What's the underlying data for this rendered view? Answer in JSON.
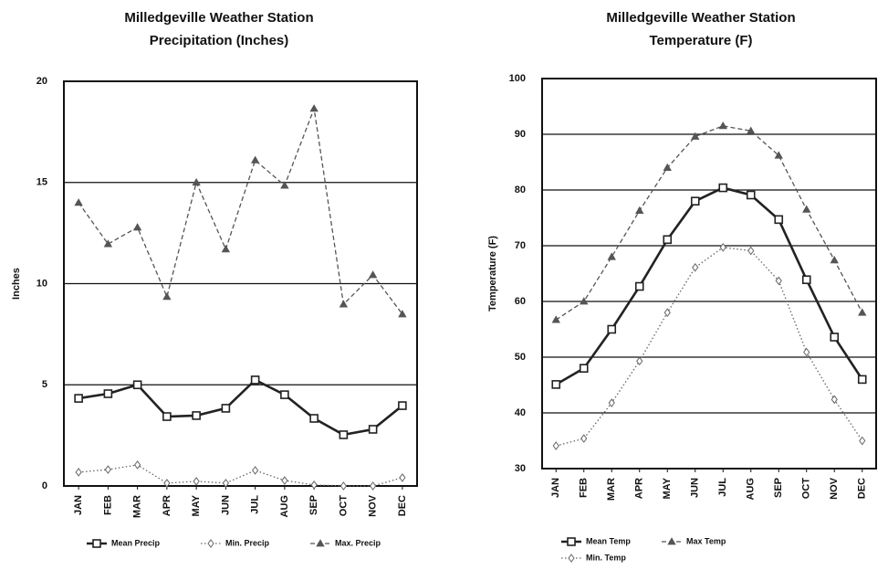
{
  "chart_data": [
    {
      "type": "line",
      "title": "Milledgeville Weather Station",
      "subtitle": "Precipitation (Inches)",
      "y_label": "Inches",
      "categories": [
        "JAN",
        "FEB",
        "MAR",
        "APR",
        "MAY",
        "JUN",
        "JUL",
        "AUG",
        "SEP",
        "OCT",
        "NOV",
        "DEC"
      ],
      "ylim": [
        0,
        20
      ],
      "yticks": [
        0,
        5,
        10,
        15,
        20
      ],
      "grid": true,
      "legend": "bottom",
      "series": [
        {
          "name": "Mean Precip",
          "color": "#222222",
          "marker": "square",
          "style": "solid",
          "values": [
            4.33,
            4.56,
            5.0,
            3.43,
            3.48,
            3.84,
            5.24,
            4.51,
            3.34,
            2.53,
            2.8,
            3.97
          ]
        },
        {
          "name": "Min. Precip",
          "color": "#666666",
          "marker": "diamond",
          "style": "dotted",
          "values": [
            0.68,
            0.81,
            1.04,
            0.14,
            0.23,
            0.14,
            0.77,
            0.27,
            0.05,
            0,
            0,
            0.41
          ]
        },
        {
          "name": "Max. Precip",
          "color": "#555555",
          "marker": "triangle",
          "style": "dashed",
          "values": [
            14.0,
            11.96,
            12.78,
            9.35,
            15.0,
            11.7,
            16.1,
            14.85,
            18.65,
            8.98,
            10.43,
            8.49
          ]
        }
      ]
    },
    {
      "type": "line",
      "title": "Milledgeville Weather Station",
      "subtitle": "Temperature (F)",
      "y_label": "Temperature (F)",
      "categories": [
        "JAN",
        "FEB",
        "MAR",
        "APR",
        "MAY",
        "JUN",
        "JUL",
        "AUG",
        "SEP",
        "OCT",
        "NOV",
        "DEC"
      ],
      "ylim": [
        30,
        100
      ],
      "yticks": [
        30,
        40,
        50,
        60,
        70,
        80,
        90,
        100
      ],
      "grid": true,
      "legend": "bottom",
      "series": [
        {
          "name": "Mean Temp",
          "color": "#222222",
          "marker": "square",
          "style": "solid",
          "values": [
            45.1,
            48,
            55,
            62.7,
            71.1,
            78,
            80.4,
            79.1,
            74.7,
            63.9,
            53.6,
            46
          ]
        },
        {
          "name": "Max Temp",
          "color": "#555555",
          "marker": "triangle",
          "style": "dashed",
          "values": [
            56.7,
            60,
            68,
            76.3,
            84,
            89.6,
            91.5,
            90.6,
            86.2,
            76.5,
            67.4,
            58
          ]
        },
        {
          "name": "Min. Temp",
          "color": "#666666",
          "marker": "diamond",
          "style": "dotted",
          "values": [
            34.1,
            35.4,
            41.8,
            49.3,
            58,
            66.1,
            69.7,
            69.1,
            63.7,
            50.9,
            42.4,
            35
          ]
        }
      ]
    }
  ]
}
